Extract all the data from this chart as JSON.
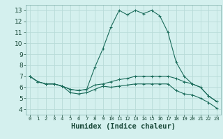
{
  "xlabel": "Humidex (Indice chaleur)",
  "bg_color": "#d4f0ee",
  "grid_color": "#b8dbd8",
  "line_color": "#1a6b5a",
  "xlim": [
    -0.5,
    23.5
  ],
  "ylim": [
    3.5,
    13.5
  ],
  "xticks": [
    0,
    1,
    2,
    3,
    4,
    5,
    6,
    7,
    8,
    9,
    10,
    11,
    12,
    13,
    14,
    15,
    16,
    17,
    18,
    19,
    20,
    21,
    22,
    23
  ],
  "yticks": [
    4,
    5,
    6,
    7,
    8,
    9,
    10,
    11,
    12,
    13
  ],
  "series1_x": [
    0,
    1,
    2,
    3,
    4,
    5,
    6,
    7,
    8,
    9,
    10,
    11,
    12,
    13,
    14,
    15,
    16,
    17,
    18,
    19,
    20,
    21,
    22,
    23
  ],
  "series1_y": [
    7.0,
    6.5,
    6.3,
    6.3,
    6.1,
    5.8,
    5.7,
    5.8,
    7.8,
    9.5,
    11.5,
    13.0,
    12.6,
    13.0,
    12.7,
    13.0,
    12.5,
    11.0,
    8.3,
    7.0,
    6.3,
    6.0,
    5.2,
    4.7
  ],
  "series2_x": [
    0,
    1,
    2,
    3,
    4,
    5,
    6,
    7,
    8,
    9,
    10,
    11,
    12,
    13,
    14,
    15,
    16,
    17,
    18,
    19,
    20,
    21,
    22,
    23
  ],
  "series2_y": [
    7.0,
    6.5,
    6.3,
    6.3,
    6.1,
    5.8,
    5.7,
    5.8,
    6.2,
    6.3,
    6.5,
    6.7,
    6.8,
    7.0,
    7.0,
    7.0,
    7.0,
    7.0,
    6.8,
    6.5,
    6.3,
    6.0,
    5.2,
    4.7
  ],
  "series3_x": [
    0,
    1,
    2,
    3,
    4,
    5,
    6,
    7,
    8,
    9,
    10,
    11,
    12,
    13,
    14,
    15,
    16,
    17,
    18,
    19,
    20,
    21,
    22,
    23
  ],
  "series3_y": [
    7.0,
    6.5,
    6.3,
    6.3,
    6.1,
    5.5,
    5.4,
    5.5,
    5.8,
    6.1,
    6.0,
    6.1,
    6.2,
    6.3,
    6.3,
    6.3,
    6.3,
    6.3,
    5.7,
    5.4,
    5.3,
    5.0,
    4.6,
    4.1
  ],
  "tick_fontsize": 6.5,
  "xlabel_fontsize": 7.5
}
